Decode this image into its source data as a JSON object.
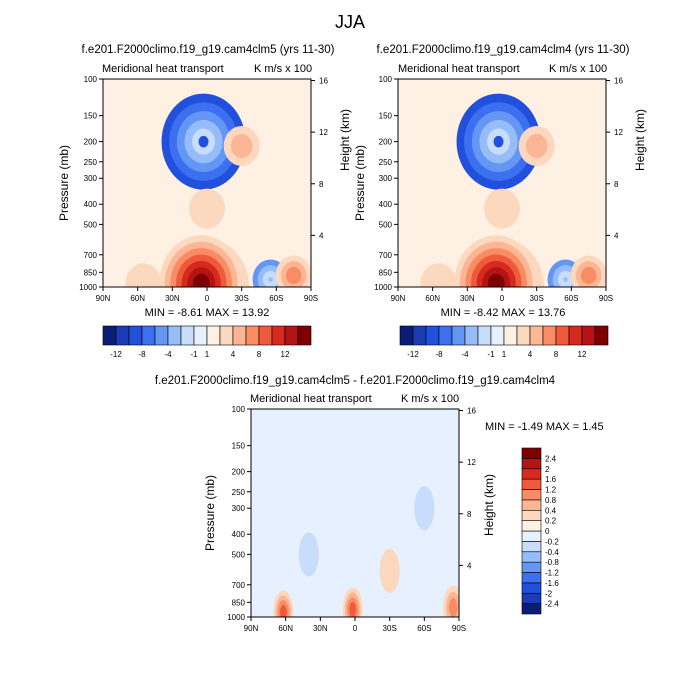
{
  "figure": {
    "title": "JJA"
  },
  "palettes": {
    "full": [
      "#0a1e78",
      "#1c3cb4",
      "#2050dc",
      "#3c70f0",
      "#6496f5",
      "#96bcfa",
      "#c8dcfc",
      "#e6f0fe",
      "#fff0e4",
      "#fcd8be",
      "#fcb696",
      "#fa8c64",
      "#f05a3c",
      "#d72a1e",
      "#b41414",
      "#7f0000"
    ],
    "diff": [
      "#0a1e78",
      "#1c3cb4",
      "#2050dc",
      "#3c70f0",
      "#6496f5",
      "#96bcfa",
      "#c8dcfc",
      "#e6f0fe",
      "#fff0e4",
      "#fcd8be",
      "#fcb696",
      "#fa8c64",
      "#f05a3c",
      "#d72a1e",
      "#b41414",
      "#7f0000"
    ]
  },
  "chart_data": [
    {
      "type": "heatmap",
      "title": "f.e201.F2000climo.f19_g19.cam4clm5 (yrs 11-30)",
      "left_label": "Meridional heat transport",
      "units_label": "K m/s x 100",
      "ylabel": "Pressure (mb)",
      "y2label": "Height (km)",
      "pressure_ticks": [
        "100",
        "150",
        "200",
        "250",
        "300",
        "400",
        "500",
        "700",
        "850",
        "1000"
      ],
      "height_ticks": [
        "16",
        "12",
        "8",
        "4"
      ],
      "lat_ticks": [
        "90N",
        "60N",
        "30N",
        "0",
        "30S",
        "60S",
        "90S"
      ],
      "min_max_text": "MIN =  -8.61   MAX =  13.92",
      "colorbar_labels": [
        "-12",
        "-8",
        "-4",
        "-1",
        "1",
        "4",
        "8",
        "12"
      ],
      "features": [
        {
          "lat": 0,
          "p": 1000,
          "value": 13.92
        },
        {
          "lat": 5,
          "p": 960,
          "value": 12
        },
        {
          "lat": -55,
          "p": 920,
          "value": -4
        },
        {
          "lat": 3,
          "p": 200,
          "value": -8.61
        },
        {
          "lat": -30,
          "p": 210,
          "value": 2
        },
        {
          "lat": 0,
          "p": 420,
          "value": 1.5
        },
        {
          "lat": -75,
          "p": 880,
          "value": 4
        },
        {
          "lat": 55,
          "p": 960,
          "value": 1.5
        }
      ]
    },
    {
      "type": "heatmap",
      "title": "f.e201.F2000climo.f19_g19.cam4clm4 (yrs 11-30)",
      "left_label": "Meridional heat transport",
      "units_label": "K m/s x 100",
      "ylabel": "Pressure (mb)",
      "y2label": "Height (km)",
      "pressure_ticks": [
        "100",
        "150",
        "200",
        "250",
        "300",
        "400",
        "500",
        "700",
        "850",
        "1000"
      ],
      "height_ticks": [
        "16",
        "12",
        "8",
        "4"
      ],
      "lat_ticks": [
        "90N",
        "60N",
        "30N",
        "0",
        "30S",
        "60S",
        "90S"
      ],
      "min_max_text": "MIN =  -8.42   MAX =  13.76",
      "colorbar_labels": [
        "-12",
        "-8",
        "-4",
        "-1",
        "1",
        "4",
        "8",
        "12"
      ],
      "features": [
        {
          "lat": 0,
          "p": 1000,
          "value": 13.76
        },
        {
          "lat": 5,
          "p": 960,
          "value": 12
        },
        {
          "lat": -55,
          "p": 920,
          "value": -4
        },
        {
          "lat": 3,
          "p": 200,
          "value": -8.42
        },
        {
          "lat": -30,
          "p": 210,
          "value": 2
        },
        {
          "lat": 0,
          "p": 420,
          "value": 1.5
        },
        {
          "lat": -75,
          "p": 880,
          "value": 4
        },
        {
          "lat": 55,
          "p": 960,
          "value": 1.5
        }
      ]
    },
    {
      "type": "heatmap",
      "title": "f.e201.F2000climo.f19_g19.cam4clm5 - f.e201.F2000climo.f19_g19.cam4clm4",
      "left_label": "Meridional heat transport",
      "units_label": "K m/s x 100",
      "ylabel": "Pressure (mb)",
      "y2label": "Height (km)",
      "pressure_ticks": [
        "100",
        "150",
        "200",
        "250",
        "300",
        "400",
        "500",
        "700",
        "850",
        "1000"
      ],
      "height_ticks": [
        "16",
        "12",
        "8",
        "4"
      ],
      "lat_ticks": [
        "90N",
        "60N",
        "30N",
        "0",
        "30S",
        "60S",
        "90S"
      ],
      "min_max_text": "MIN =  -1.49   MAX =   1.45",
      "colorbar_labels": [
        "2.4",
        "2",
        "1.6",
        "1.2",
        "0.8",
        "0.4",
        "0.2",
        "0",
        "-0.2",
        "-0.4",
        "-0.8",
        "-1.2",
        "-1.6",
        "-2",
        "-2.4"
      ],
      "features": [
        {
          "lat": 62,
          "p": 950,
          "value": 1.2
        },
        {
          "lat": 2,
          "p": 920,
          "value": 1.45
        },
        {
          "lat": -85,
          "p": 900,
          "value": 1.0
        },
        {
          "lat": -30,
          "p": 600,
          "value": 0.3
        },
        {
          "lat": 40,
          "p": 500,
          "value": -0.3
        },
        {
          "lat": -60,
          "p": 300,
          "value": -0.3
        }
      ]
    }
  ]
}
